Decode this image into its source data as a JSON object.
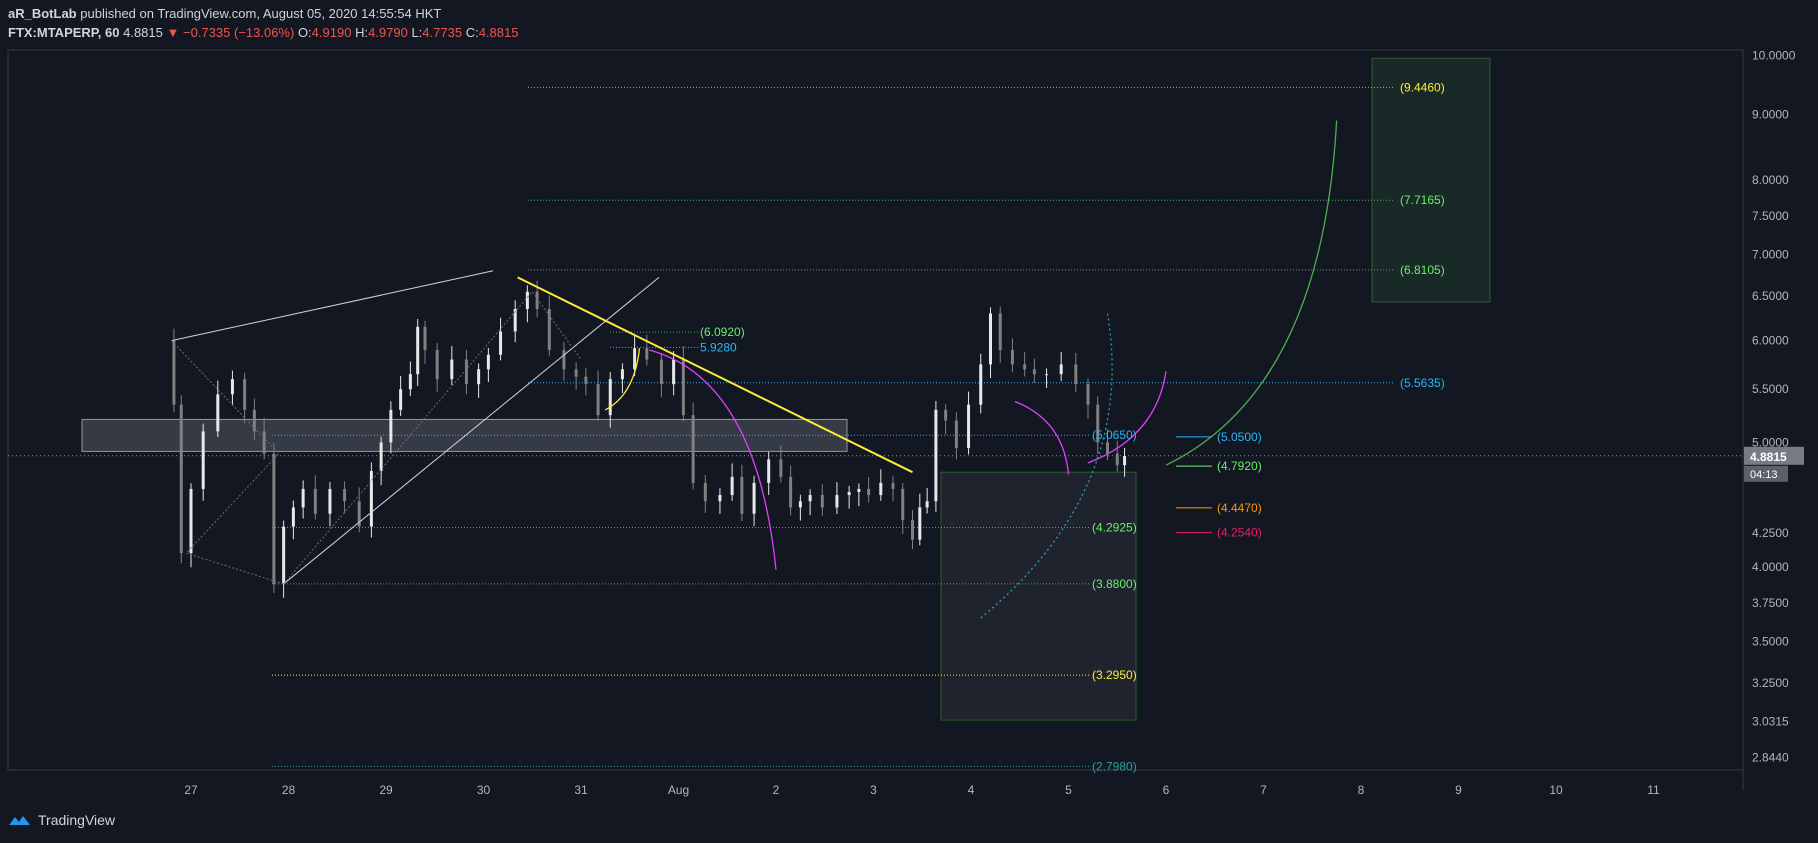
{
  "header": {
    "author": "aR_BotLab",
    "published_text": "published on TradingView.com, August 05, 2020 14:55:54 HKT",
    "symbol": "FTX:MTAPERP, 60",
    "last": "4.8815",
    "down_arrow": "▼",
    "change": "−0.7335 (−13.06%)",
    "o_label": "O:",
    "o_value": "4.9190",
    "h_label": "H:",
    "h_value": "4.9790",
    "l_label": "L:",
    "l_value": "4.7735",
    "c_label": "C:",
    "c_value": "4.8815"
  },
  "footer": {
    "brand": "TradingView",
    "logo_icon": "tradingview-logo-icon"
  },
  "colors": {
    "background": "#131722",
    "candle": "#d1d4dc",
    "yellow": "#ffeb3b",
    "green": "#4caf50",
    "light_green": "#69f069",
    "cyan": "#29b6f6",
    "teal": "#26a69a",
    "orange": "#ff9800",
    "red": "#e91e63",
    "magenta": "#e040fb"
  },
  "chart_data": {
    "type": "candlestick",
    "y_scale": "log",
    "ylim": [
      2.78,
      10.1
    ],
    "y_ticks": [
      "10.0000",
      "9.0000",
      "8.0000",
      "7.5000",
      "7.0000",
      "6.5000",
      "6.0000",
      "5.5000",
      "5.0000",
      "4.2500",
      "4.0000",
      "3.7500",
      "3.5000",
      "3.2500",
      "3.0315",
      "2.8440"
    ],
    "x_labels": [
      "27",
      "28",
      "29",
      "30",
      "31",
      "Aug",
      "2",
      "3",
      "4",
      "5",
      "6",
      "7",
      "8",
      "9",
      "10",
      "11"
    ],
    "last_price": {
      "value": 4.8815,
      "label": "4.8815",
      "countdown": "04:13"
    },
    "price_path": [
      [
        26.8,
        6.0
      ],
      [
        26.85,
        5.35
      ],
      [
        26.95,
        4.1
      ],
      [
        27.05,
        4.6
      ],
      [
        27.2,
        5.1
      ],
      [
        27.35,
        5.45
      ],
      [
        27.5,
        5.6
      ],
      [
        27.6,
        5.3
      ],
      [
        27.7,
        5.1
      ],
      [
        27.8,
        4.9
      ],
      [
        27.9,
        3.88
      ],
      [
        28.0,
        4.3
      ],
      [
        28.2,
        4.6
      ],
      [
        28.35,
        4.4
      ],
      [
        28.5,
        4.6
      ],
      [
        28.65,
        4.5
      ],
      [
        28.8,
        4.3
      ],
      [
        28.9,
        4.75
      ],
      [
        29.0,
        5.0
      ],
      [
        29.1,
        5.3
      ],
      [
        29.2,
        5.5
      ],
      [
        29.3,
        5.65
      ],
      [
        29.35,
        6.15
      ],
      [
        29.45,
        5.9
      ],
      [
        29.6,
        5.6
      ],
      [
        29.75,
        5.8
      ],
      [
        29.9,
        5.55
      ],
      [
        30.1,
        5.85
      ],
      [
        30.25,
        6.1
      ],
      [
        30.4,
        6.35
      ],
      [
        30.5,
        6.55
      ],
      [
        30.6,
        6.35
      ],
      [
        30.75,
        5.9
      ],
      [
        30.9,
        5.7
      ],
      [
        31.1,
        5.55
      ],
      [
        31.25,
        5.25
      ],
      [
        31.35,
        5.6
      ],
      [
        31.5,
        5.7
      ],
      [
        31.6,
        5.92
      ],
      [
        31.75,
        5.8
      ],
      [
        31.9,
        5.55
      ],
      [
        32.0,
        5.8
      ],
      [
        32.1,
        5.25
      ],
      [
        32.2,
        4.65
      ],
      [
        32.35,
        4.5
      ],
      [
        32.5,
        4.55
      ],
      [
        32.6,
        4.7
      ],
      [
        32.7,
        4.4
      ],
      [
        32.85,
        4.65
      ],
      [
        33.0,
        4.85
      ],
      [
        33.1,
        4.7
      ],
      [
        33.2,
        4.45
      ],
      [
        33.4,
        4.55
      ],
      [
        33.55,
        4.45
      ],
      [
        33.7,
        4.55
      ],
      [
        33.9,
        4.6
      ],
      [
        34.0,
        4.55
      ],
      [
        34.15,
        4.65
      ],
      [
        34.25,
        4.6
      ],
      [
        34.35,
        4.35
      ],
      [
        34.45,
        4.2
      ],
      [
        34.5,
        4.45
      ],
      [
        34.6,
        4.5
      ],
      [
        34.68,
        5.3
      ],
      [
        34.8,
        5.2
      ],
      [
        34.9,
        4.95
      ],
      [
        35.05,
        5.35
      ],
      [
        35.15,
        5.75
      ],
      [
        35.25,
        6.3
      ],
      [
        35.35,
        5.9
      ],
      [
        35.5,
        5.75
      ],
      [
        35.7,
        5.65
      ],
      [
        35.85,
        5.65
      ],
      [
        36.0,
        5.75
      ],
      [
        36.15,
        5.55
      ],
      [
        36.25,
        5.35
      ],
      [
        36.35,
        5.0
      ],
      [
        36.45,
        4.9
      ],
      [
        36.55,
        4.8
      ],
      [
        36.6,
        4.88
      ]
    ]
  },
  "drawings": {
    "right_labels": [
      {
        "text": "(9.4460)",
        "value": 9.446,
        "color": "yellow"
      },
      {
        "text": "(7.7165)",
        "value": 7.7165,
        "color": "light_green"
      },
      {
        "text": "(6.8105)",
        "value": 6.8105,
        "color": "light_green"
      },
      {
        "text": "(5.5635)",
        "value": 5.5635,
        "color": "cyan"
      }
    ],
    "mid_labels": [
      {
        "text": "(6.0920)",
        "value": 6.092,
        "color": "light_green"
      },
      {
        "text": "5.9280",
        "value": 5.928,
        "color": "cyan"
      },
      {
        "text": "(5.0650)",
        "value": 5.065,
        "color": "cyan"
      },
      {
        "text": "(4.2925)",
        "value": 4.2925,
        "color": "light_green"
      },
      {
        "text": "(3.8800)",
        "value": 3.88,
        "color": "light_green"
      },
      {
        "text": "(3.2950)",
        "value": 3.295,
        "color": "yellow"
      },
      {
        "text": "(2.7980)",
        "value": 2.798,
        "color": "teal"
      }
    ],
    "short_levels": [
      {
        "text": "(5.0500)",
        "value": 5.05,
        "color": "cyan"
      },
      {
        "text": "(4.7920)",
        "value": 4.792,
        "color": "light_green"
      },
      {
        "text": "(4.4470)",
        "value": 4.447,
        "color": "orange"
      },
      {
        "text": "(4.2540)",
        "value": 4.254,
        "color": "red"
      }
    ]
  }
}
